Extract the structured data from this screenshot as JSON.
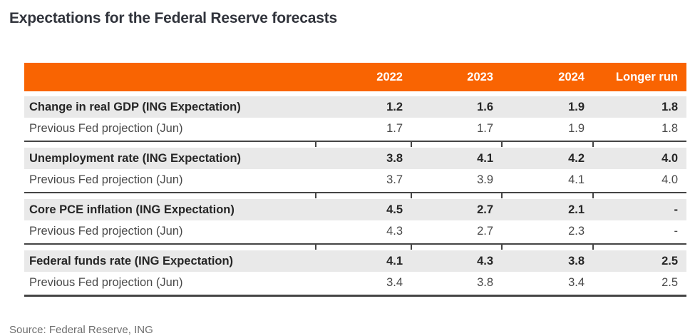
{
  "title": "Expectations for the Federal Reserve forecasts",
  "source_note": "Source: Federal Reserve, ING",
  "colors": {
    "header_bg": "#F96402",
    "header_text": "#FFFFFF",
    "alt_row_bg": "#E9E9E9",
    "rule": "#454545",
    "title_text": "#31343C",
    "source_text": "#6E6E6E"
  },
  "chart_data": {
    "type": "table",
    "title": "Expectations for the Federal Reserve forecasts",
    "columns": [
      "2022",
      "2023",
      "2024",
      "Longer run"
    ],
    "rows": [
      {
        "label": "Change in real GDP (ING Expectation)",
        "values": [
          "1.2",
          "1.6",
          "1.9",
          "1.8"
        ]
      },
      {
        "label": "Previous Fed projection (Jun)",
        "values": [
          "1.7",
          "1.7",
          "1.9",
          "1.8"
        ]
      },
      {
        "label": "Unemployment rate (ING Expectation)",
        "values": [
          "3.8",
          "4.1",
          "4.2",
          "4.0"
        ]
      },
      {
        "label": "Previous Fed projection (Jun)",
        "values": [
          "3.7",
          "3.9",
          "4.1",
          "4.0"
        ]
      },
      {
        "label": "Core PCE inflation (ING Expectation)",
        "values": [
          "4.5",
          "2.7",
          "2.1",
          "-"
        ]
      },
      {
        "label": "Previous Fed projection (Jun)",
        "values": [
          "4.3",
          "2.7",
          "2.3",
          "-"
        ]
      },
      {
        "label": "Federal funds rate (ING Expectation)",
        "values": [
          "4.1",
          "4.3",
          "3.8",
          "2.5"
        ]
      },
      {
        "label": "Previous Fed projection (Jun)",
        "values": [
          "3.4",
          "3.8",
          "3.4",
          "2.5"
        ]
      }
    ],
    "source": "Source: Federal Reserve, ING",
    "layout": {
      "row_emphasis_pattern": "alternating, bold gray rows for ING Expectation",
      "grid": "section separators only"
    }
  }
}
